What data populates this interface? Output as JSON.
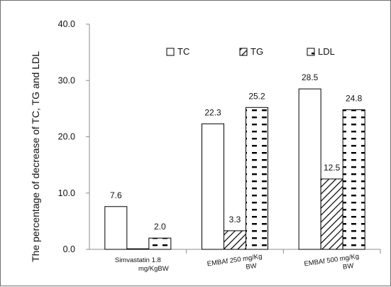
{
  "chart_data": {
    "type": "bar",
    "title": "",
    "xlabel": "",
    "ylabel": "The percentage of decrease  of TC, TG and LDL",
    "ylim": [
      0,
      40
    ],
    "y_ticks": [
      "0.0",
      "10.0",
      "20.0",
      "30.0",
      "40.0"
    ],
    "grid": false,
    "legend_position": "top-center",
    "categories": [
      [
        "Simvastatin 1.8",
        "mg/KgBW"
      ],
      [
        "EMBAf 250 mg/Kg",
        "BW"
      ],
      [
        "EMBAf 500 mg/Kg",
        "BW"
      ]
    ],
    "series": [
      {
        "name": "TC",
        "values": [
          7.6,
          22.3,
          28.5
        ],
        "labels": [
          "7.6",
          "22.3",
          "28.5"
        ],
        "pattern": "none"
      },
      {
        "name": "TG",
        "values": [
          0.0,
          3.3,
          12.5
        ],
        "labels": [
          "",
          "3.3",
          "12.5"
        ],
        "pattern": "diagonal"
      },
      {
        "name": "LDL",
        "values": [
          2.0,
          25.2,
          24.8
        ],
        "labels": [
          "2.0",
          "25.2",
          "24.8"
        ],
        "pattern": "dashes"
      }
    ],
    "colors": {
      "bar_fill": "#ffffff",
      "stroke": "#000000",
      "axis": "#8c8c8c"
    }
  }
}
